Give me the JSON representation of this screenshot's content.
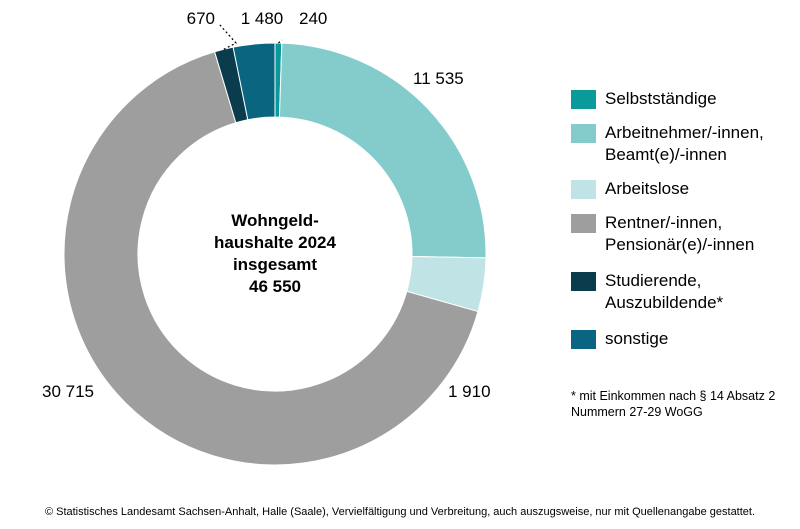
{
  "chart_data": {
    "type": "pie",
    "style": "donut",
    "title": "Wohngeldhaushalte 2024 insgesamt 46 550",
    "center_label": {
      "line1": "Wohngeld-",
      "line2": "haushalte 2024",
      "line3": "insgesamt",
      "line4": "46 550"
    },
    "total": 46550,
    "slices": [
      {
        "key": "selbststaendige",
        "name": "Selbstständige",
        "value": 240,
        "label": "240",
        "color": "#0a9a9c"
      },
      {
        "key": "arbeitnehmer",
        "name": "Arbeitnehmer/-innen,\nBeamt(e)/-innen",
        "value": 11535,
        "label": "11 535",
        "color": "#84cccc"
      },
      {
        "key": "arbeitslose",
        "name": "Arbeitslose",
        "value": 1910,
        "label": "1 910",
        "color": "#c0e3e5"
      },
      {
        "key": "rentner",
        "name": "Rentner/-innen,\nPensionär(e)/-innen",
        "value": 30715,
        "label": "30 715",
        "color": "#9e9e9e"
      },
      {
        "key": "studierende",
        "name": "Studierende,\nAuszubildende*",
        "value": 670,
        "label": "670",
        "color": "#0a3c4e"
      },
      {
        "key": "sonstige",
        "name": "sonstige",
        "value": 1480,
        "label": "1 480",
        "color": "#0a6680"
      }
    ],
    "legend_position": "right"
  },
  "footnote": "* mit Einkommen nach § 14 Absatz 2\nNummern 27-29 WoGG",
  "copyright": "© Statistisches Landesamt Sachsen-Anhalt, Halle (Saale), Vervielfältigung und Verbreitung, auch auszugsweise, nur mit Quellenangabe gestattet."
}
